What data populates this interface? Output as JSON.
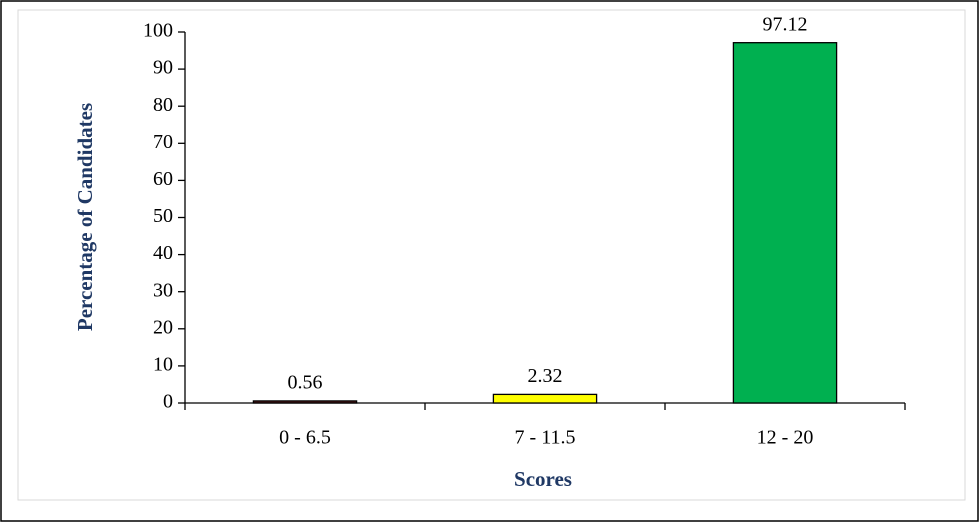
{
  "chart_data": {
    "type": "bar",
    "xlabel": "Scores",
    "ylabel": "Percentage of Candidates",
    "categories": [
      "0 - 6.5",
      "7 - 11.5",
      "12 - 20"
    ],
    "values": [
      0.56,
      2.32,
      97.12
    ],
    "colors": [
      "#5c1a1a",
      "#ffff00",
      "#00b050"
    ],
    "ylim": [
      0,
      100
    ],
    "yticks": [
      0,
      10,
      20,
      30,
      40,
      50,
      60,
      70,
      80,
      90,
      100
    ],
    "grid": false,
    "show_value_labels": true
  }
}
